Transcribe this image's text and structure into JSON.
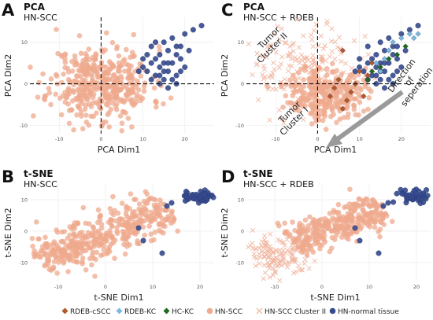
{
  "colors": {
    "rdeb_cscc": "#b1582e",
    "rdeb_kc": "#7ab8e6",
    "hc_kc": "#1e6b1e",
    "hn_scc": "#efa98d",
    "hn_scc_cluster2": "#f1b9a4",
    "hn_normal": "#34498d"
  },
  "legend": {
    "items": [
      {
        "label": "RDEB-cSCC",
        "marker": "diamond",
        "color": "#b1582e"
      },
      {
        "label": "RDEB-KC",
        "marker": "diamond",
        "color": "#7ab8e6"
      },
      {
        "label": "HC-KC",
        "marker": "diamond",
        "color": "#1e6b1e"
      },
      {
        "label": "HN-SCC",
        "marker": "circle",
        "color": "#efa98d"
      },
      {
        "label": "HN-SCC Cluster II",
        "marker": "cross",
        "color": "#f1b9a4"
      },
      {
        "label": "HN-normal tissue",
        "marker": "circle",
        "color": "#34498d"
      }
    ]
  },
  "panels": {
    "A": {
      "letter": "A",
      "title": "PCA",
      "subtitle": "HN-SCC"
    },
    "B": {
      "letter": "B",
      "title": "t-SNE",
      "subtitle": "HN-SCC"
    },
    "C": {
      "letter": "C",
      "title": "PCA",
      "subtitle": "HN-SCC + RDEB",
      "annotations": {
        "cluster2_line1": "Tumor",
        "cluster2_line2": "Cluster II",
        "cluster1_line1": "Tumor",
        "cluster1_line2": "Cluster I",
        "direction_line1": "Direction",
        "direction_line2": "of seperation"
      }
    },
    "D": {
      "letter": "D",
      "title": "t-SNE",
      "subtitle": "HN-SCC + RDEB"
    }
  },
  "chart_data": [
    {
      "panel": "A",
      "type": "scatter",
      "xlabel": "PCA Dim1",
      "ylabel": "PCA Dim2",
      "xlim": [
        -17,
        27
      ],
      "ylim": [
        -12,
        16
      ],
      "xticks": [
        -10,
        0,
        10,
        20
      ],
      "yticks": [
        -10,
        0,
        10
      ],
      "grid": true,
      "reference_lines": {
        "x": 0,
        "y": 0
      },
      "series": [
        {
          "name": "HN-SCC",
          "marker": "circle",
          "color": "#efa98d",
          "cloud": {
            "center": [
              0,
              0
            ],
            "spread": [
              6,
              4.5
            ],
            "count": 420,
            "seed": 11
          }
        },
        {
          "name": "HN-normal tissue",
          "marker": "circle",
          "color": "#34498d",
          "points": [
            [
              10,
              4
            ],
            [
              11,
              3
            ],
            [
              12,
              5
            ],
            [
              13,
              2
            ],
            [
              14,
              4
            ],
            [
              15,
              1
            ],
            [
              16,
              3
            ],
            [
              17,
              5
            ],
            [
              18,
              2
            ],
            [
              19,
              6
            ],
            [
              20,
              4
            ],
            [
              11,
              7
            ],
            [
              12,
              9
            ],
            [
              14,
              7
            ],
            [
              15,
              10
            ],
            [
              16,
              8
            ],
            [
              17,
              11
            ],
            [
              18,
              9
            ],
            [
              20,
              12
            ],
            [
              22,
              13
            ],
            [
              14,
              0
            ],
            [
              16,
              -1
            ],
            [
              18,
              0
            ],
            [
              15,
              3
            ],
            [
              17,
              1
            ],
            [
              13,
              6
            ],
            [
              19,
              3
            ],
            [
              12,
              1
            ],
            [
              21,
              8
            ],
            [
              24,
              14
            ],
            [
              13,
              10
            ],
            [
              10,
              6
            ],
            [
              9,
              3
            ],
            [
              18,
              7
            ],
            [
              15,
              5
            ],
            [
              16,
              5
            ],
            [
              14,
              2
            ],
            [
              19,
              9
            ]
          ]
        }
      ]
    },
    {
      "panel": "C",
      "type": "scatter",
      "xlabel": "PCA Dim1",
      "ylabel": "PCA Dim2",
      "xlim": [
        -17,
        27
      ],
      "ylim": [
        -12,
        16
      ],
      "xticks": [
        -10,
        0,
        10,
        20
      ],
      "yticks": [
        -10,
        0,
        10
      ],
      "grid": true,
      "reference_lines": {
        "x": 0,
        "y": 0
      },
      "series": [
        {
          "name": "HN-SCC Cluster II",
          "marker": "cross",
          "color": "#f1b9a4",
          "cloud": {
            "center": [
              -4,
              4
            ],
            "spread": [
              7,
              5
            ],
            "count": 170,
            "seed": 23
          }
        },
        {
          "name": "HN-SCC",
          "marker": "circle",
          "color": "#efa98d",
          "cloud": {
            "center": [
              2,
              -2
            ],
            "spread": [
              4.5,
              3.2
            ],
            "count": 300,
            "seed": 37
          }
        },
        {
          "name": "HN-normal tissue",
          "marker": "circle",
          "color": "#34498d",
          "points": [
            [
              10,
              4
            ],
            [
              11,
              3
            ],
            [
              12,
              5
            ],
            [
              13,
              2
            ],
            [
              14,
              4
            ],
            [
              15,
              1
            ],
            [
              16,
              3
            ],
            [
              17,
              5
            ],
            [
              18,
              2
            ],
            [
              19,
              6
            ],
            [
              20,
              4
            ],
            [
              12,
              9
            ],
            [
              14,
              7
            ],
            [
              15,
              10
            ],
            [
              16,
              8
            ],
            [
              17,
              11
            ],
            [
              18,
              9
            ],
            [
              20,
              12
            ],
            [
              22,
              13
            ],
            [
              14,
              0
            ],
            [
              16,
              -1
            ],
            [
              18,
              0
            ],
            [
              15,
              3
            ],
            [
              17,
              1
            ],
            [
              13,
              6
            ],
            [
              19,
              3
            ],
            [
              12,
              1
            ],
            [
              21,
              8
            ],
            [
              24,
              14
            ],
            [
              10,
              6
            ],
            [
              9,
              3
            ],
            [
              18,
              7
            ],
            [
              15,
              5
            ],
            [
              16,
              5
            ],
            [
              14,
              2
            ],
            [
              19,
              9
            ]
          ]
        },
        {
          "name": "RDEB-cSCC",
          "marker": "diamond",
          "color": "#b1582e",
          "points": [
            [
              6,
              8
            ],
            [
              5,
              1
            ],
            [
              8,
              -2
            ],
            [
              9,
              0
            ],
            [
              11,
              -3
            ],
            [
              6,
              -6
            ],
            [
              7,
              -4
            ],
            [
              12,
              2
            ],
            [
              4,
              -1
            ],
            [
              10,
              3
            ],
            [
              13,
              5
            ],
            [
              3,
              -3
            ]
          ]
        },
        {
          "name": "RDEB-KC",
          "marker": "diamond",
          "color": "#7ab8e6",
          "points": [
            [
              14,
              5
            ],
            [
              16,
              6
            ],
            [
              17,
              8
            ],
            [
              18,
              10
            ],
            [
              20,
              11
            ],
            [
              22,
              12
            ],
            [
              23,
              11
            ],
            [
              24,
              12
            ],
            [
              15,
              3
            ]
          ]
        },
        {
          "name": "HC-KC",
          "marker": "diamond",
          "color": "#1e6b1e",
          "points": [
            [
              13,
              3
            ],
            [
              15,
              4
            ],
            [
              17,
              6
            ],
            [
              19,
              7
            ],
            [
              21,
              9
            ],
            [
              12,
              1
            ]
          ]
        }
      ]
    },
    {
      "panel": "B",
      "type": "scatter",
      "xlabel": "t-SNE Dim1",
      "ylabel": "t-SNE Dim2",
      "xlim": [
        -16,
        23
      ],
      "ylim": [
        -16,
        15
      ],
      "xticks": [
        -10,
        0,
        10,
        20
      ],
      "yticks": [
        -10,
        0,
        10
      ],
      "grid": true,
      "series": [
        {
          "name": "HN-SCC",
          "marker": "circle",
          "color": "#efa98d",
          "band": {
            "from": [
              -14,
              -10
            ],
            "to": [
              13,
              8
            ],
            "width": 7,
            "count": 430,
            "seed": 51
          }
        },
        {
          "name": "HN-normal tissue",
          "marker": "circle",
          "color": "#34498d",
          "cloud": {
            "center": [
              19.5,
              11
            ],
            "spread": [
              1.8,
              1.1
            ],
            "count": 45,
            "seed": 61
          },
          "points": [
            [
              13,
              8
            ],
            [
              14,
              9
            ],
            [
              12,
              -7
            ],
            [
              7,
              1
            ],
            [
              8,
              -3
            ]
          ]
        }
      ]
    },
    {
      "panel": "D",
      "type": "scatter",
      "xlabel": "t-SNE Dim1",
      "ylabel": "t-SNE Dim2",
      "xlim": [
        -16,
        23
      ],
      "ylim": [
        -16,
        15
      ],
      "xticks": [
        -10,
        0,
        10,
        20
      ],
      "yticks": [
        -10,
        0,
        10
      ],
      "grid": true,
      "series": [
        {
          "name": "HN-SCC Cluster II",
          "marker": "cross",
          "color": "#f1b9a4",
          "cloud": {
            "center": [
              -9,
              -8
            ],
            "spread": [
              4,
              3.5
            ],
            "count": 150,
            "seed": 71
          }
        },
        {
          "name": "HN-SCC",
          "marker": "circle",
          "color": "#efa98d",
          "band": {
            "from": [
              -6,
              -4
            ],
            "to": [
              13,
              8
            ],
            "width": 6,
            "count": 330,
            "seed": 81
          }
        },
        {
          "name": "HN-normal tissue",
          "marker": "circle",
          "color": "#34498d",
          "cloud": {
            "center": [
              19.5,
              11
            ],
            "spread": [
              1.8,
              1.1
            ],
            "count": 45,
            "seed": 91
          },
          "points": [
            [
              13,
              8
            ],
            [
              14,
              9
            ],
            [
              12,
              -7
            ],
            [
              7,
              1
            ],
            [
              8,
              -3
            ]
          ]
        }
      ]
    }
  ]
}
